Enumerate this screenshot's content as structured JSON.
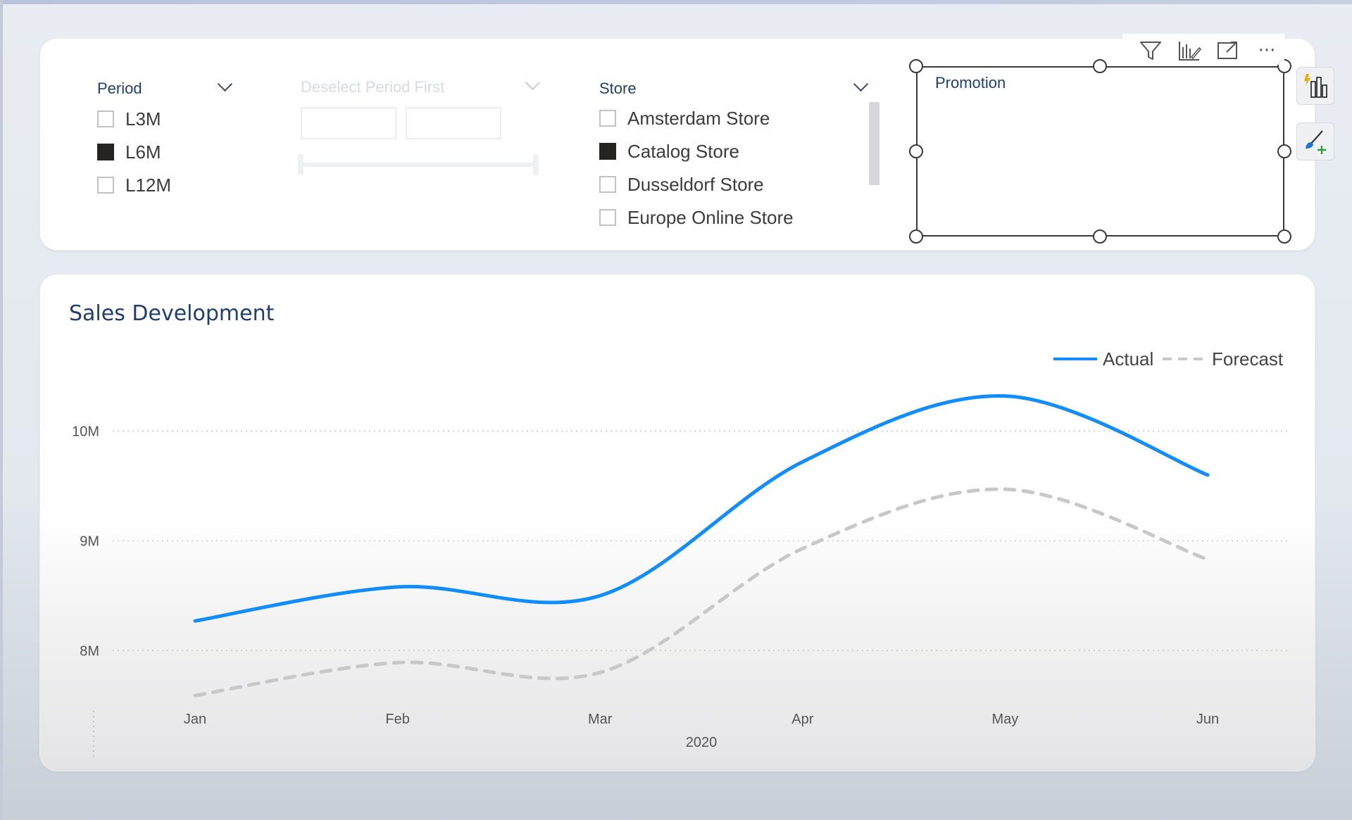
{
  "slicers": {
    "period": {
      "title": "Period",
      "items": [
        {
          "label": "L3M",
          "checked": false
        },
        {
          "label": "L6M",
          "checked": true
        },
        {
          "label": "L12M",
          "checked": false
        }
      ]
    },
    "date_range": {
      "title": "Deselect Period First",
      "from_value": "",
      "to_value": ""
    },
    "store": {
      "title": "Store",
      "items": [
        {
          "label": "Amsterdam Store",
          "checked": false
        },
        {
          "label": "Catalog Store",
          "checked": true
        },
        {
          "label": "Dusseldorf Store",
          "checked": false
        },
        {
          "label": "Europe Online Store",
          "checked": false
        }
      ]
    },
    "promotion": {
      "title": "Promotion"
    }
  },
  "visual_toolbar": {
    "icons": [
      "filter-icon",
      "focus-drill-icon",
      "expand-icon",
      "more-options-icon"
    ],
    "more_label": "···"
  },
  "side_panel": {
    "icons": [
      "smart-narrative-icon",
      "format-brush-icon"
    ]
  },
  "colors": {
    "accent_blue": "#118dff",
    "forecast_gray": "#c8c8c8",
    "title_navy": "#1f3f72"
  },
  "chart_data": {
    "type": "line",
    "title": "Sales Development",
    "categories": [
      "Jan",
      "Feb",
      "Mar",
      "Apr",
      "May",
      "Jun"
    ],
    "x_group_label": "2020",
    "ylim": [
      7.45,
      10.85
    ],
    "yticks": [
      {
        "value": 8,
        "label": "8M"
      },
      {
        "value": 9,
        "label": "9M"
      },
      {
        "value": 10,
        "label": "10M"
      }
    ],
    "grid": true,
    "legend_position": "top-right",
    "series": [
      {
        "name": "Actual",
        "style": "solid",
        "color": "#118dff",
        "values": [
          8.27,
          8.58,
          8.5,
          9.72,
          10.32,
          9.6
        ]
      },
      {
        "name": "Forecast",
        "style": "dashed",
        "color": "#c8c8c8",
        "values": [
          7.59,
          7.89,
          7.8,
          8.93,
          9.47,
          8.83
        ]
      }
    ]
  }
}
